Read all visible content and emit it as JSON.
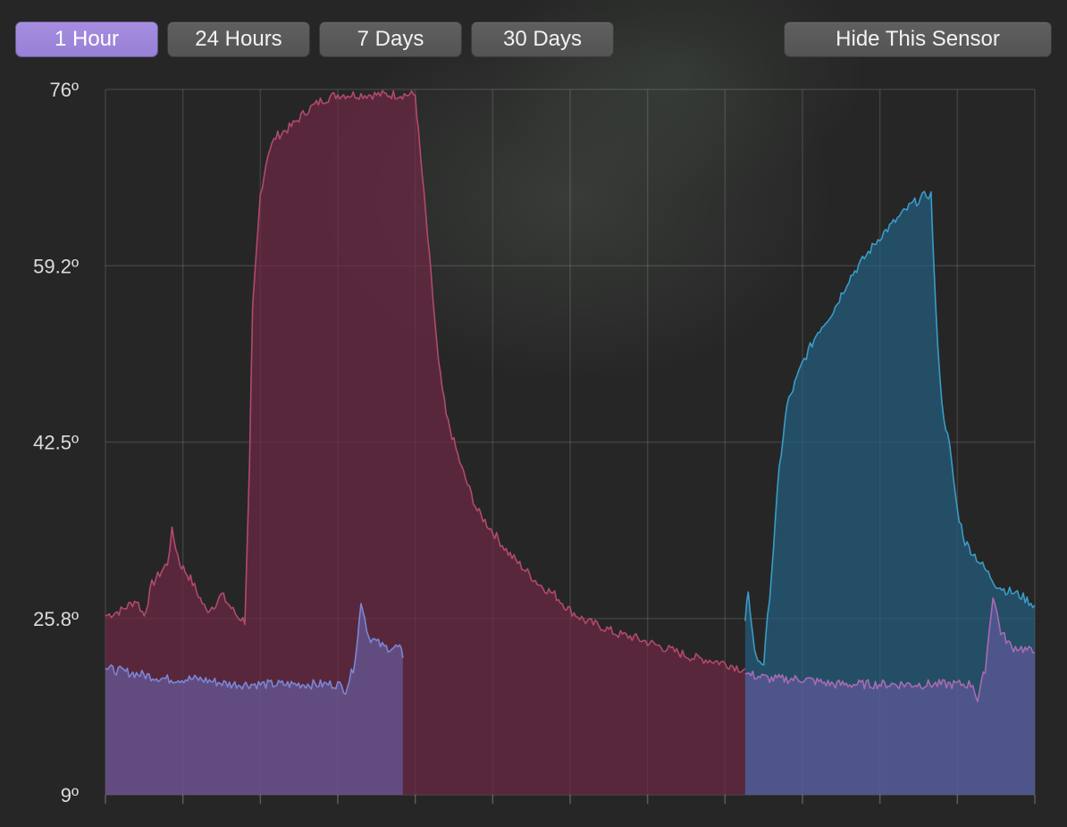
{
  "toolbar": {
    "ranges": [
      "1 Hour",
      "24 Hours",
      "7 Days",
      "30 Days"
    ],
    "active_range": "1 Hour",
    "hide_sensor_label": "Hide This Sensor"
  },
  "colors": {
    "accent": "#9b85d8",
    "red_series_line": "#b04a6c",
    "red_series_fill": "#5a2638",
    "purple_series_line": "#7a86d6",
    "purple_series_fill": "#524a7a",
    "blue_series_line": "#3a9bc6",
    "blue_series_fill": "#1f4a63",
    "pink_series_line": "#a86bb0"
  },
  "chart_data": {
    "type": "area",
    "y_tick_labels": [
      "76º",
      "59.2º",
      "42.5º",
      "25.8º",
      "9º"
    ],
    "ylim": [
      9,
      76
    ],
    "xlim": [
      0,
      60
    ],
    "grid": true,
    "x_ticks": 12,
    "series": [
      {
        "color": "#b04a6c",
        "points": [
          [
            0,
            26
          ],
          [
            1,
            26.5
          ],
          [
            2,
            27.5
          ],
          [
            2.5,
            26
          ],
          [
            3,
            29
          ],
          [
            3.5,
            30
          ],
          [
            4,
            31
          ],
          [
            4.3,
            34
          ],
          [
            4.8,
            31
          ],
          [
            5.5,
            29.5
          ],
          [
            6,
            28
          ],
          [
            6.5,
            26.5
          ],
          [
            7,
            27
          ],
          [
            7.5,
            28
          ],
          [
            8,
            27
          ],
          [
            8.5,
            26
          ],
          [
            9,
            25.5
          ],
          [
            9.3,
            40
          ],
          [
            9.5,
            55
          ],
          [
            10,
            66
          ],
          [
            10.5,
            70
          ],
          [
            11,
            71.5
          ],
          [
            12,
            72.5
          ],
          [
            13,
            74
          ],
          [
            14,
            75
          ],
          [
            15,
            75.5
          ],
          [
            16,
            75.5
          ],
          [
            17,
            75.5
          ],
          [
            18,
            75.5
          ],
          [
            20,
            75.5
          ],
          [
            20.2,
            72
          ],
          [
            20.8,
            62
          ],
          [
            21.5,
            50
          ],
          [
            22,
            45
          ],
          [
            23,
            40
          ],
          [
            24,
            36
          ],
          [
            25,
            34
          ],
          [
            26,
            32
          ],
          [
            27,
            30.5
          ],
          [
            28,
            29
          ],
          [
            29,
            28
          ],
          [
            30,
            26.5
          ],
          [
            31,
            25.5
          ],
          [
            32,
            25
          ],
          [
            33,
            24.3
          ],
          [
            34,
            24
          ],
          [
            35,
            23.5
          ],
          [
            36,
            23
          ],
          [
            37,
            22.5
          ],
          [
            38,
            22
          ],
          [
            39,
            21.8
          ],
          [
            40,
            21.5
          ],
          [
            41,
            21
          ],
          [
            41.3,
            21
          ]
        ]
      },
      {
        "color": "#7a86d6",
        "points": [
          [
            0,
            21
          ],
          [
            2,
            20.5
          ],
          [
            4,
            20
          ],
          [
            6,
            20
          ],
          [
            8,
            19.5
          ],
          [
            10,
            19.5
          ],
          [
            12,
            19.5
          ],
          [
            14,
            19.5
          ],
          [
            15,
            19.5
          ],
          [
            15.5,
            19
          ],
          [
            16,
            21
          ],
          [
            16.3,
            24
          ],
          [
            16.5,
            27.5
          ],
          [
            17,
            24
          ],
          [
            17.5,
            23.5
          ],
          [
            18,
            23
          ],
          [
            19,
            23
          ],
          [
            19.2,
            22
          ]
        ]
      },
      {
        "color": "#3a9bc6",
        "points": [
          [
            41.3,
            25.5
          ],
          [
            41.5,
            28.5
          ],
          [
            41.8,
            24
          ],
          [
            42,
            22
          ],
          [
            42.5,
            21.5
          ],
          [
            43,
            30
          ],
          [
            43.5,
            40
          ],
          [
            44,
            46
          ],
          [
            44.5,
            48
          ],
          [
            45,
            50
          ],
          [
            46,
            53
          ],
          [
            47,
            55
          ],
          [
            48,
            58
          ],
          [
            49,
            60
          ],
          [
            50,
            62
          ],
          [
            51,
            63.5
          ],
          [
            52,
            65
          ],
          [
            53,
            66
          ],
          [
            53.3,
            66
          ],
          [
            53.6,
            55
          ],
          [
            54,
            46
          ],
          [
            54.5,
            42
          ],
          [
            55,
            36
          ],
          [
            55.5,
            33
          ],
          [
            56,
            32
          ],
          [
            57,
            30
          ],
          [
            57.5,
            29
          ],
          [
            58,
            28.5
          ],
          [
            59,
            28
          ],
          [
            60,
            27
          ]
        ]
      },
      {
        "color": "#a86bb0",
        "points": [
          [
            41.3,
            20.5
          ],
          [
            43,
            20
          ],
          [
            45,
            20
          ],
          [
            47,
            19.5
          ],
          [
            49,
            19.5
          ],
          [
            51,
            19.5
          ],
          [
            53,
            19.5
          ],
          [
            55,
            19.5
          ],
          [
            56,
            19.5
          ],
          [
            56.3,
            18
          ],
          [
            56.8,
            21
          ],
          [
            57.3,
            28
          ],
          [
            57.8,
            24.5
          ],
          [
            58.5,
            23
          ],
          [
            59,
            23
          ],
          [
            60,
            22.5
          ]
        ]
      }
    ]
  }
}
